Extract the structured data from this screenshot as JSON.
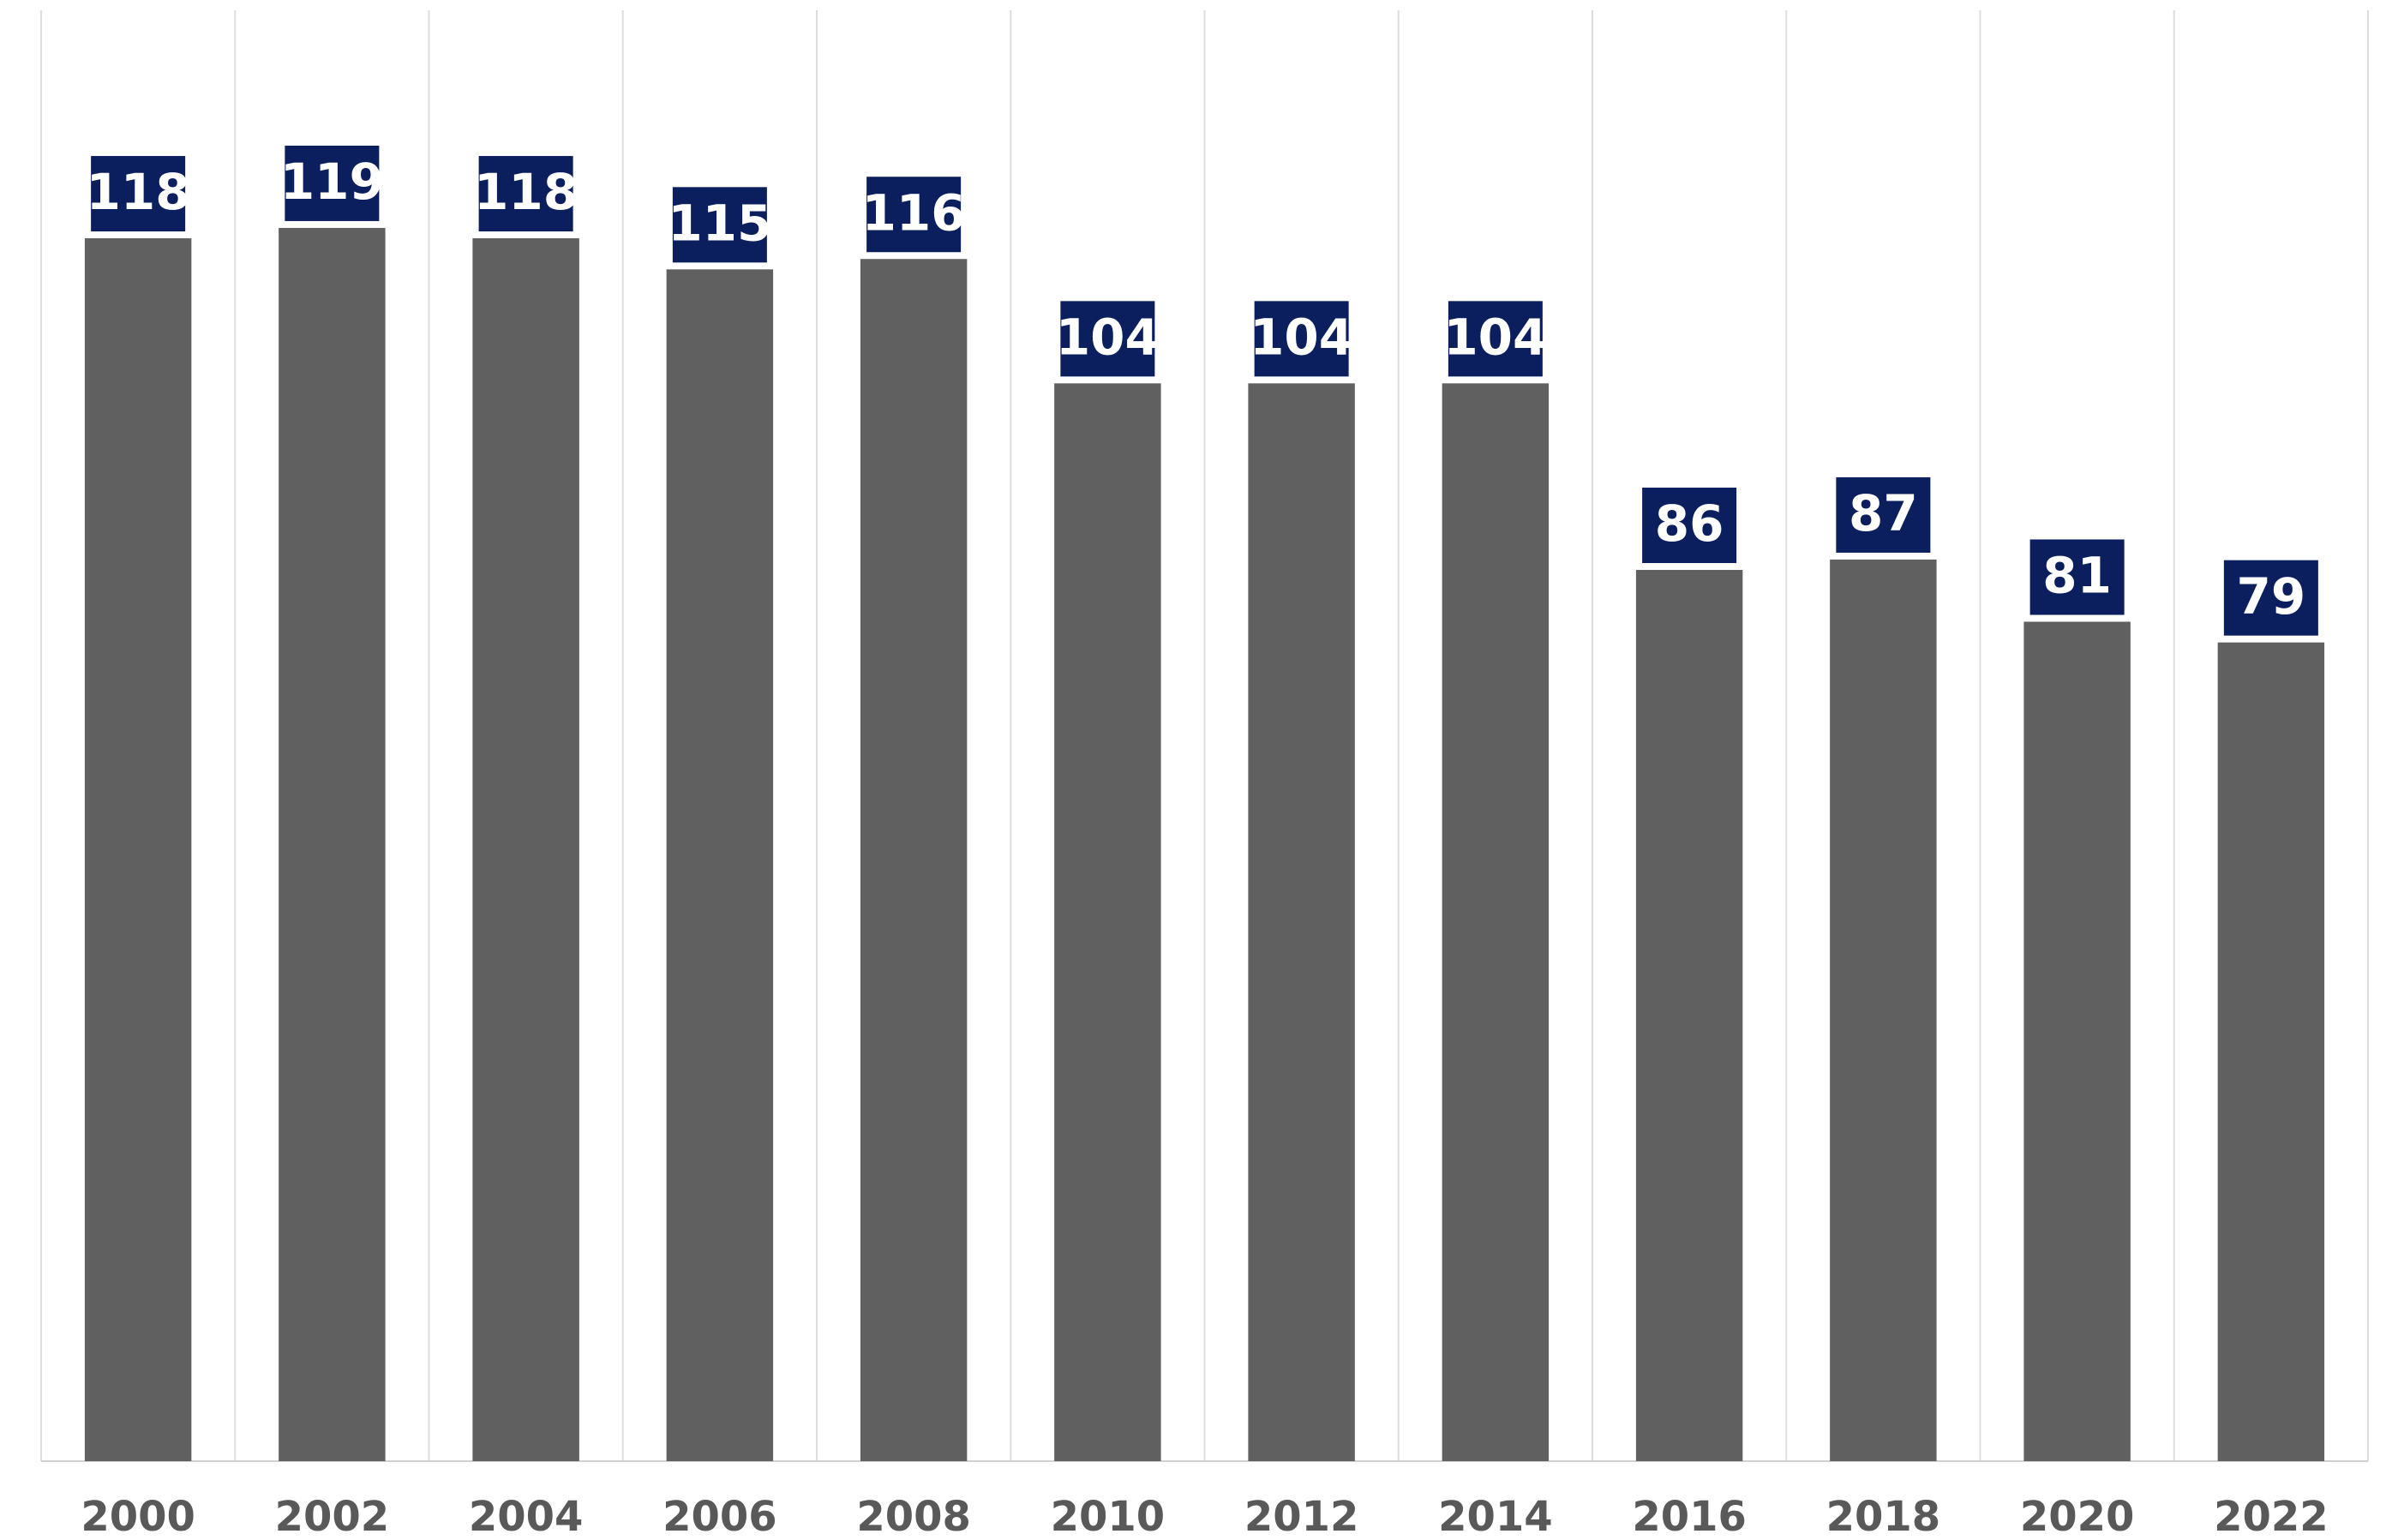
{
  "chart_data": {
    "type": "bar",
    "categories": [
      "2000",
      "2002",
      "2004",
      "2006",
      "2008",
      "2010",
      "2012",
      "2014",
      "2016",
      "2018",
      "2020",
      "2022"
    ],
    "values": [
      118,
      119,
      118,
      115,
      116,
      104,
      104,
      104,
      86,
      87,
      81,
      79
    ],
    "color": "#606060",
    "label_color": "#0b1f5e",
    "ylim": [
      0,
      140
    ],
    "grid": true
  }
}
